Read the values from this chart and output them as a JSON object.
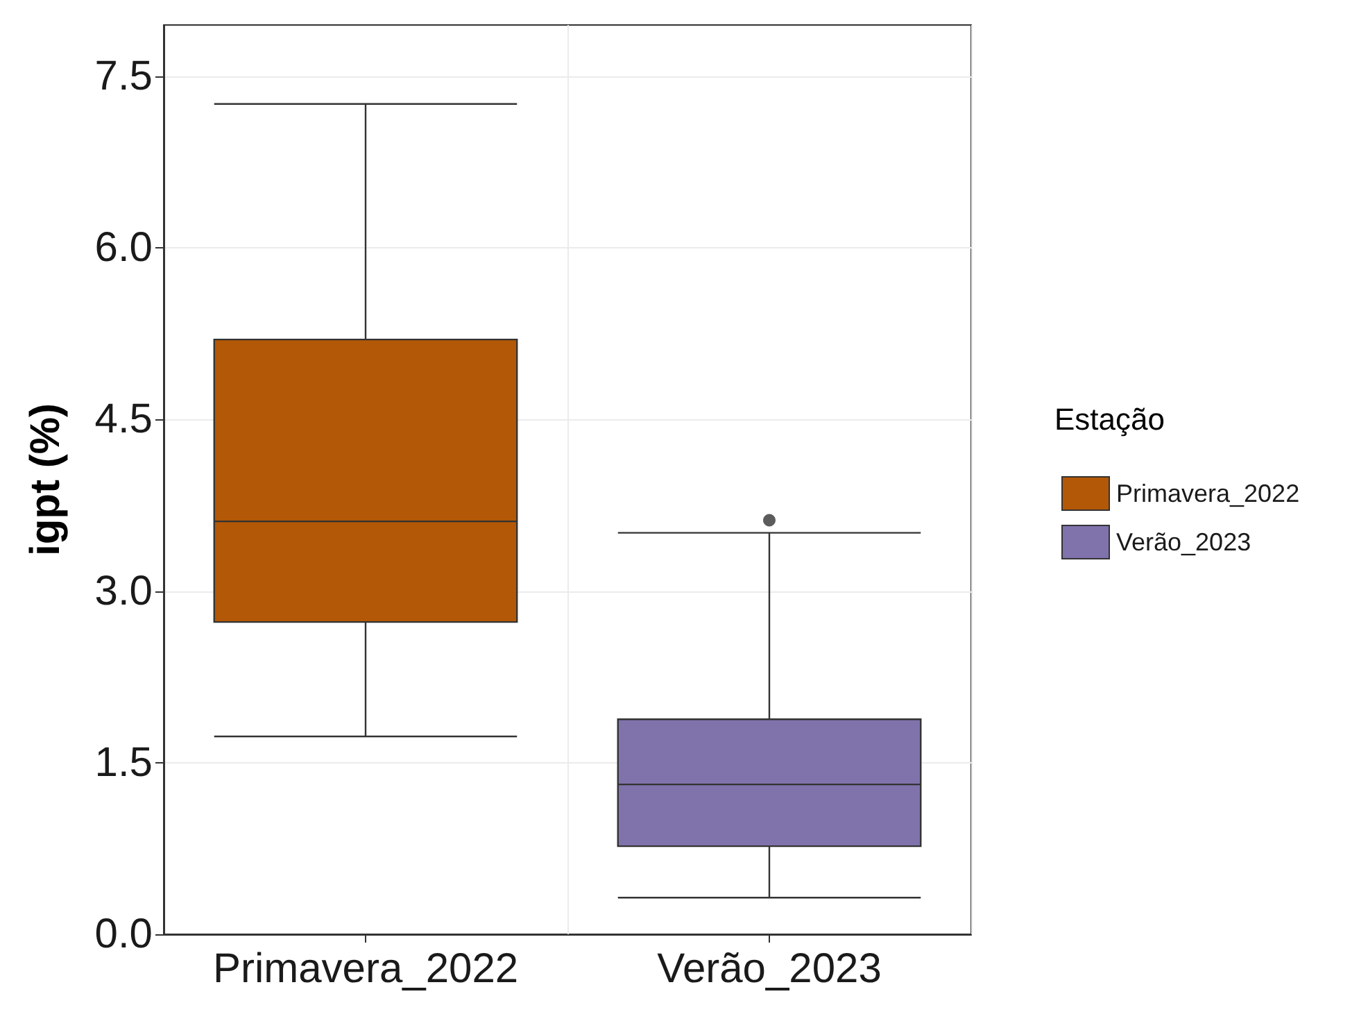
{
  "chart_data": {
    "type": "box",
    "ylabel": "igpt (%)",
    "legend_title": "Estação",
    "categories": [
      "Primavera_2022",
      "Verão_2023"
    ],
    "series": [
      {
        "name": "Primavera_2022",
        "color": "#b35806",
        "boxes": [
          {
            "low": 1.73,
            "q1": 2.73,
            "median": 3.61,
            "q3": 5.2,
            "high": 7.26
          },
          null
        ]
      },
      {
        "name": "Verão_2023",
        "color": "#8073ac",
        "boxes": [
          null,
          {
            "low": 0.32,
            "q1": 0.77,
            "median": 1.31,
            "q3": 1.88,
            "high": 3.51,
            "outliers": [
              3.62
            ]
          }
        ]
      }
    ],
    "ylim": [
      0,
      7.95
    ],
    "yticks": [
      {
        "value": 0,
        "label": "0.0"
      },
      {
        "value": 1.5,
        "label": "1.5"
      },
      {
        "value": 3,
        "label": "3.0"
      },
      {
        "value": 4.5,
        "label": "4.5"
      },
      {
        "value": 6,
        "label": "6.0"
      },
      {
        "value": 7.5,
        "label": "7.5"
      }
    ],
    "grid": true,
    "legend": "right"
  }
}
